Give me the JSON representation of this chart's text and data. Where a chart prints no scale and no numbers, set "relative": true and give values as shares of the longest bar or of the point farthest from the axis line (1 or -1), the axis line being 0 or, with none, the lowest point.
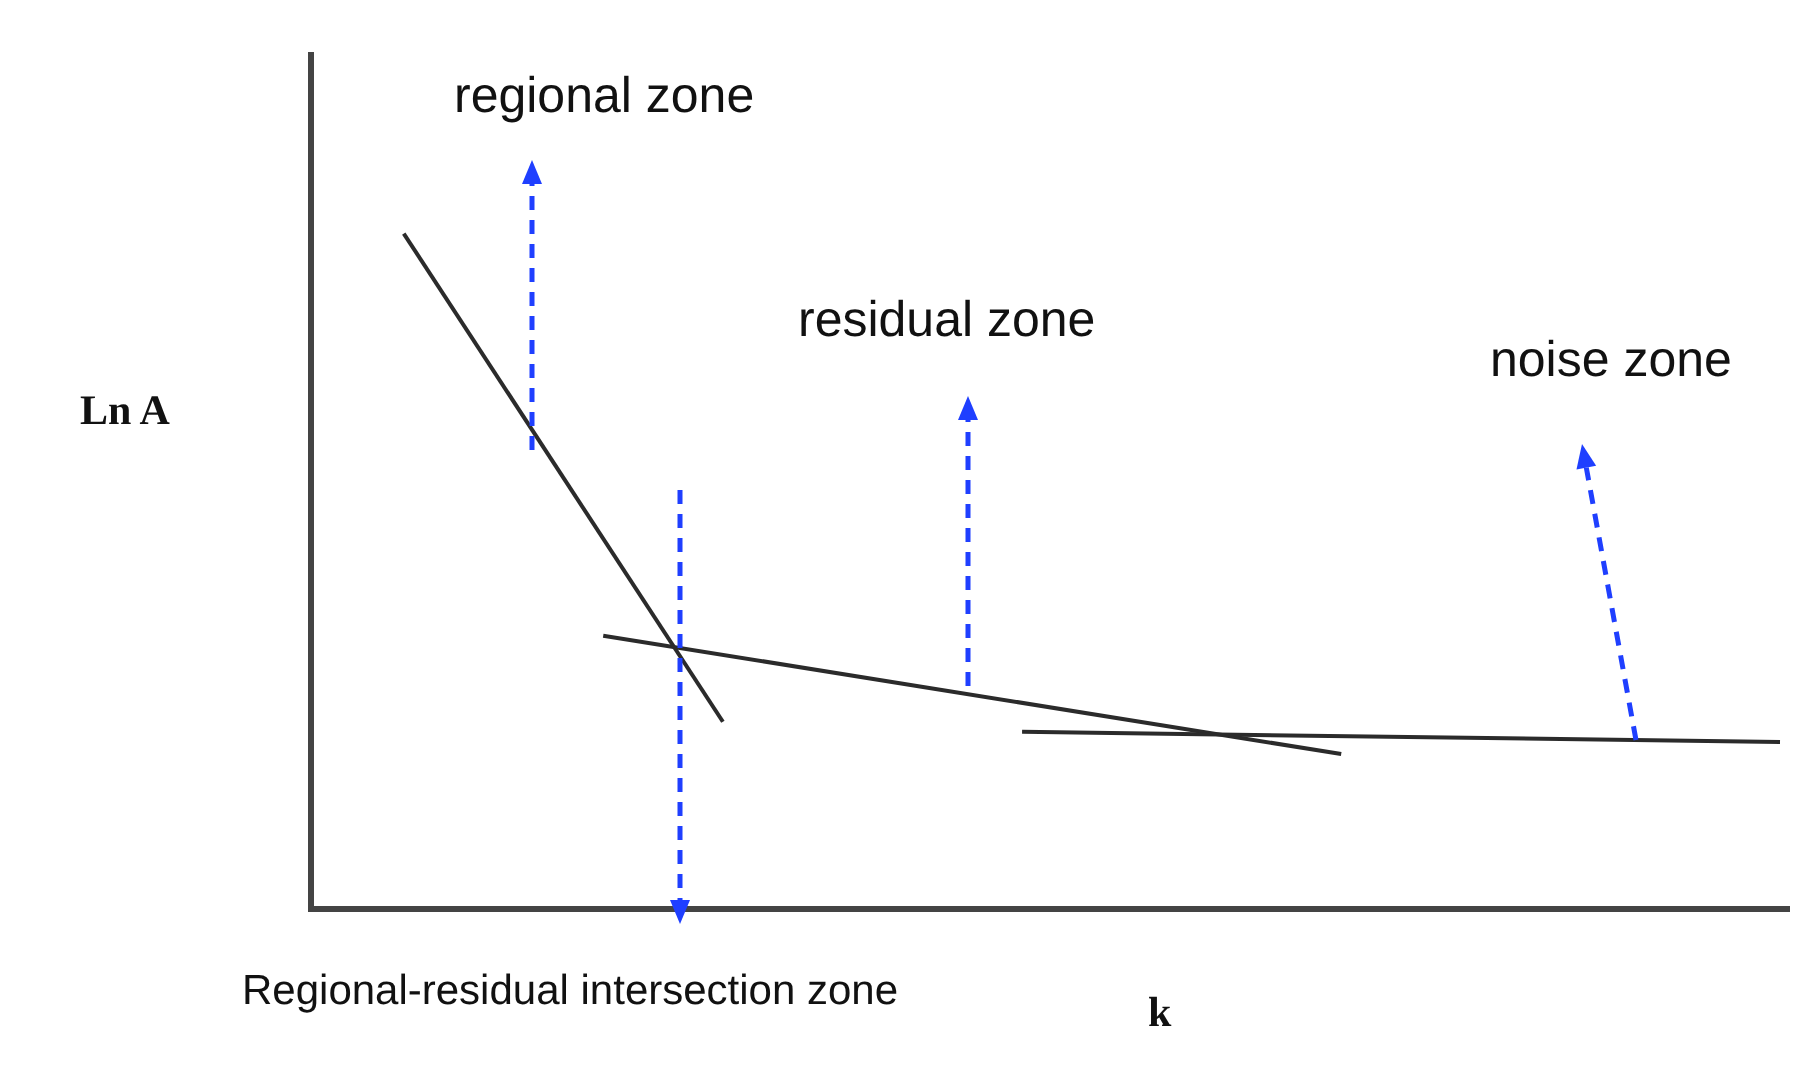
{
  "chart_data": {
    "type": "line",
    "relative": true,
    "xlabel": "k",
    "ylabel": "Ln A",
    "marker": "none",
    "line_style": "solid",
    "categories": [
      null,
      null,
      null,
      null,
      null,
      null,
      null,
      null,
      null,
      null,
      null,
      null,
      null,
      null,
      null,
      null,
      null,
      null,
      null,
      null,
      null,
      null,
      null,
      null,
      null,
      null,
      null,
      null,
      null,
      null,
      null,
      null,
      null,
      null,
      null,
      null,
      null,
      null,
      null,
      null,
      null,
      null,
      null,
      null,
      null,
      null,
      null,
      null,
      null,
      null,
      null,
      null,
      null,
      null,
      null,
      null,
      null,
      null,
      null,
      null,
      null,
      null,
      null,
      null,
      null,
      null,
      null,
      null,
      null,
      null,
      null,
      null,
      null,
      null
    ],
    "series": [
      {
        "color": "#2b2b2b",
        "values": [
          null,
          null,
          null,
          null,
          1,
          null,
          null,
          null,
          null,
          null,
          null,
          null,
          null,
          null,
          null,
          null,
          null,
          null,
          null,
          null,
          0.274,
          null,
          null,
          null,
          null,
          null,
          null,
          null,
          null,
          null,
          null,
          null,
          null,
          null,
          null,
          null,
          null,
          null,
          null,
          null,
          null,
          null,
          null,
          null,
          null,
          null,
          null,
          null,
          null,
          null,
          null,
          null,
          null,
          null,
          null,
          null,
          null,
          null,
          null,
          null,
          null,
          null,
          null,
          null,
          null,
          null,
          null,
          null,
          null,
          null,
          null,
          null,
          null,
          null
        ]
      },
      {
        "color": "#2b2b2b",
        "values": [
          null,
          null,
          null,
          null,
          null,
          null,
          null,
          null,
          null,
          null,
          null,
          null,
          null,
          null,
          0.402,
          null,
          null,
          null,
          null,
          null,
          null,
          null,
          null,
          null,
          null,
          null,
          null,
          null,
          null,
          null,
          null,
          null,
          null,
          null,
          null,
          null,
          null,
          null,
          null,
          null,
          null,
          null,
          null,
          null,
          null,
          null,
          null,
          null,
          null,
          null,
          null,
          0.226,
          null,
          null,
          null,
          null,
          null,
          null,
          null,
          null,
          null,
          null,
          null,
          null,
          null,
          null,
          null,
          null,
          null,
          null,
          null,
          null,
          null,
          null
        ]
      },
      {
        "color": "#2b2b2b",
        "values": [
          null,
          null,
          null,
          null,
          null,
          null,
          null,
          null,
          null,
          null,
          null,
          null,
          null,
          null,
          null,
          null,
          null,
          null,
          null,
          null,
          null,
          null,
          null,
          null,
          null,
          null,
          null,
          null,
          null,
          null,
          null,
          null,
          null,
          null,
          null,
          0.259,
          null,
          null,
          null,
          null,
          null,
          null,
          null,
          null,
          null,
          null,
          null,
          null,
          null,
          null,
          null,
          null,
          null,
          null,
          null,
          null,
          null,
          null,
          null,
          null,
          null,
          null,
          null,
          null,
          null,
          null,
          null,
          null,
          null,
          null,
          null,
          null,
          null,
          0.244
        ]
      }
    ],
    "annotations": [
      "regional zone",
      "residual zone",
      "noise zone",
      "Regional-residual intersection zone"
    ]
  }
}
